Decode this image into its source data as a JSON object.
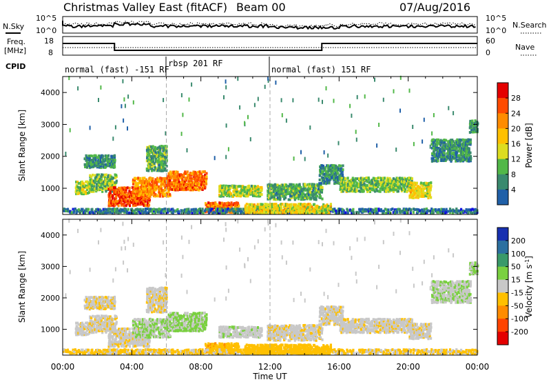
{
  "header": {
    "title": "Christmas Valley East (fitACF)",
    "beam": "Beam 00",
    "date": "07/Aug/2016"
  },
  "labels": {
    "nsky": "N.Sky",
    "nsearch": "N.Search",
    "freq": "Freq.",
    "freq_unit": "[MHz]",
    "nave": "Nave",
    "cpid": "CPID",
    "xlabel": "Time UT",
    "ylabel_top": "Slant Range [km]",
    "ylabel_bottom": "Slant Range [km]",
    "cb_power": "Power [dB]",
    "cb_velocity_a": "Velocity [m s",
    "cb_velocity_exp": "-1",
    "cb_velocity_b": "]"
  },
  "noise_axis": {
    "left_top": "10^5",
    "left_bottom": "10^0",
    "right_top": "10^5",
    "right_bottom": "10^0"
  },
  "freq_axis": {
    "left": [
      "18",
      "8"
    ],
    "right": [
      "60",
      "0"
    ]
  },
  "cpid_segments": [
    {
      "label": "normal (fast) -151 RF",
      "start": 0,
      "end": 6
    },
    {
      "label": "rbsp 201 RF",
      "start": 6,
      "end": 12
    },
    {
      "label": "normal (fast) 151 RF",
      "start": 12,
      "end": 24
    }
  ],
  "chart_data": {
    "type": "heatmap",
    "x_ticks": [
      "00:00",
      "04:00",
      "08:00",
      "12:00",
      "16:00",
      "20:00",
      "00:00"
    ],
    "xlim_hours": [
      0,
      24
    ],
    "ylim_km": [
      180,
      4500
    ],
    "y_ticks": [
      "1000",
      "2000",
      "3000",
      "4000"
    ],
    "y_tick_values": [
      1000,
      2000,
      3000,
      4000
    ],
    "dashed_time_markers_hours": [
      6,
      12
    ],
    "frequency_steps": [
      {
        "start_hours": 0,
        "end_hours": 3,
        "value": "high"
      },
      {
        "start_hours": 3,
        "end_hours": 15,
        "value": "low"
      },
      {
        "start_hours": 15,
        "end_hours": 24,
        "value": "high"
      }
    ],
    "power_scale": {
      "unit": "dB",
      "ticks": [
        "28",
        "24",
        "20",
        "16",
        "12",
        "8",
        "4"
      ],
      "colors": [
        "#e40000",
        "#ff4b00",
        "#ff8c00",
        "#ffc000",
        "#dddd20",
        "#52b848",
        "#3a8a6e",
        "#2060a8",
        "#1010e0"
      ]
    },
    "velocity_scale": {
      "unit": "m s-1",
      "ticks": [
        "200",
        "100",
        "50",
        "15",
        "-15",
        "-50",
        "-100",
        "-200"
      ],
      "colors": [
        "#1830b0",
        "#2c70a0",
        "#3a9a6a",
        "#7ad040",
        "#c8c8c8",
        "#ffc000",
        "#ff8c00",
        "#ff4400",
        "#e40000"
      ]
    },
    "regions": [
      {
        "t0": 0.7,
        "t1": 1.6,
        "r0": 780,
        "r1": 1180,
        "power": 14,
        "velocity": -5
      },
      {
        "t0": 1.5,
        "t1": 3.1,
        "r0": 850,
        "r1": 1400,
        "power": 12,
        "velocity": -8
      },
      {
        "t0": 1.2,
        "t1": 3.0,
        "r0": 1600,
        "r1": 2000,
        "power": 8,
        "velocity": -10
      },
      {
        "t0": 2.6,
        "t1": 5.0,
        "r0": 400,
        "r1": 1000,
        "power": 26,
        "velocity": -5
      },
      {
        "t0": 4.0,
        "t1": 6.2,
        "r0": 700,
        "r1": 1300,
        "power": 22,
        "velocity": 15
      },
      {
        "t0": 6.0,
        "t1": 8.3,
        "r0": 900,
        "r1": 1500,
        "power": 24,
        "velocity": 20
      },
      {
        "t0": 4.8,
        "t1": 6.0,
        "r0": 1500,
        "r1": 2300,
        "power": 10,
        "velocity": -8
      },
      {
        "t0": 8.2,
        "t1": 10.2,
        "r0": 200,
        "r1": 520,
        "power": 24,
        "velocity": -40
      },
      {
        "t0": 9.0,
        "t1": 11.5,
        "r0": 700,
        "r1": 1050,
        "power": 14,
        "velocity": 5
      },
      {
        "t0": 11.8,
        "t1": 15.0,
        "r0": 600,
        "r1": 1100,
        "power": 10,
        "velocity": -8
      },
      {
        "t0": 14.8,
        "t1": 16.2,
        "r0": 1100,
        "r1": 1700,
        "power": 8,
        "velocity": -5
      },
      {
        "t0": 16.0,
        "t1": 20.2,
        "r0": 850,
        "r1": 1300,
        "power": 12,
        "velocity": -5
      },
      {
        "t0": 20.0,
        "t1": 21.3,
        "r0": 650,
        "r1": 1150,
        "power": 16,
        "velocity": -5
      },
      {
        "t0": 21.3,
        "t1": 23.6,
        "r0": 1800,
        "r1": 2500,
        "power": 8,
        "velocity": 10
      },
      {
        "t0": 23.5,
        "t1": 24.0,
        "r0": 2700,
        "r1": 3100,
        "power": 8,
        "velocity": 20
      },
      {
        "t0": 0.0,
        "t1": 24.0,
        "r0": 180,
        "r1": 330,
        "power": 6,
        "velocity": -20
      },
      {
        "t0": 10.5,
        "t1": 15.5,
        "r0": 180,
        "r1": 480,
        "power": 16,
        "velocity": -35
      }
    ]
  }
}
